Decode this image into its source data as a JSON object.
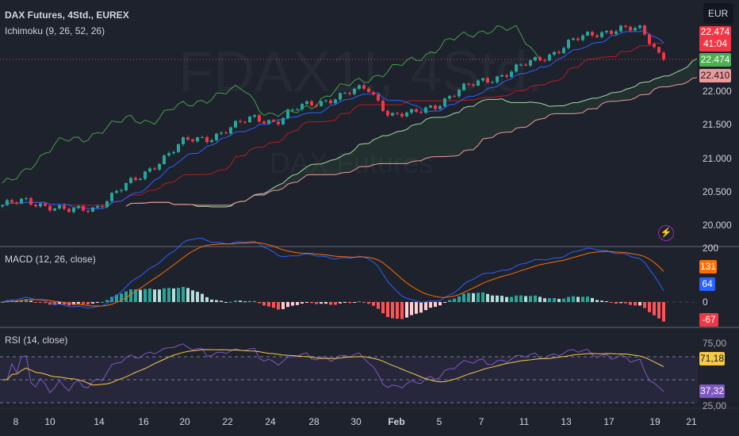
{
  "header": {
    "title": "DAX Futures, 4Std., EUREX",
    "indicator": "Ichimoku (9, 26, 52, 26)",
    "currency": "EUR"
  },
  "watermark": {
    "symbol": "FDAX1!, 4Std.",
    "name": "DAX Futures"
  },
  "price_axis": {
    "ticks": [
      "22.000",
      "21.500",
      "21.000",
      "20.500",
      "20.000"
    ],
    "last_price": "22.474",
    "countdown": "41:04",
    "close_label": "22.474",
    "span_b_label": "22.410"
  },
  "macd": {
    "title": "MACD (12, 26, close)",
    "ticks": [
      "200",
      "0"
    ],
    "signal_label": "131",
    "macd_label": "64",
    "hist_label": "-67"
  },
  "rsi": {
    "title": "RSI (14, close)",
    "ticks": [
      "75,00",
      "25,00"
    ],
    "ma_label": "71,18",
    "rsi_label": "37,32"
  },
  "time_axis": [
    "8",
    "10",
    "14",
    "16",
    "20",
    "22",
    "24",
    "28",
    "30",
    "Feb",
    "5",
    "7",
    "11",
    "13",
    "17",
    "19",
    "21"
  ],
  "colors": {
    "up": "#26a69a",
    "down": "#f23645",
    "tenkan": "#2962ff",
    "kijun": "#b71c1c",
    "lagging": "#43a047",
    "spanA": "#a5d6a7",
    "spanB": "#ef9a9a",
    "macd": "#2962ff",
    "signal": "#ff6d00",
    "rsi": "#7e57c2",
    "rsi_ma": "#f7c948"
  },
  "chart_data": {
    "type": "candlestick",
    "anchor_closes": [
      20300,
      20350,
      20300,
      20200,
      20250,
      20500,
      20700,
      21000,
      21250,
      21300,
      21450,
      21600,
      21550,
      21750,
      21850,
      21950,
      22050,
      21650,
      21650,
      21800,
      22000,
      22150,
      22250,
      22400,
      22550,
      22750,
      22850,
      22950,
      22900,
      22474
    ],
    "ylim": [
      19900,
      23200
    ]
  }
}
